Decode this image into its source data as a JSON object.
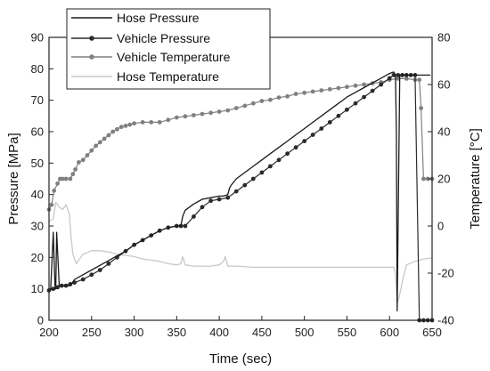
{
  "chart_data": {
    "type": "line",
    "title": "",
    "xlabel": "Time (sec)",
    "ylabel_left": "Pressure [MPa]",
    "ylabel_right": "Temperature [°C]",
    "xlim": [
      200,
      650
    ],
    "ylim_left": [
      0,
      90
    ],
    "ylim_right": [
      -40,
      80
    ],
    "x_ticks": [
      200,
      250,
      300,
      350,
      400,
      450,
      500,
      550,
      600,
      650
    ],
    "y_left_ticks": [
      0,
      10,
      20,
      30,
      40,
      50,
      60,
      70,
      80,
      90
    ],
    "y_right_ticks": [
      -40,
      -20,
      0,
      20,
      40,
      60,
      80
    ],
    "grid": false,
    "legend_position": "top-left",
    "series": [
      {
        "name": "Hose Pressure",
        "axis": "left",
        "color": "#1a1a1a",
        "marker": "none",
        "x": [
          202,
          205,
          207,
          208,
          209,
          212,
          215,
          220,
          225,
          230,
          240,
          250,
          260,
          270,
          280,
          290,
          300,
          310,
          320,
          330,
          340,
          350,
          355,
          357,
          360,
          370,
          380,
          390,
          400,
          405,
          410,
          412,
          414,
          420,
          430,
          440,
          450,
          460,
          470,
          480,
          490,
          500,
          510,
          520,
          530,
          540,
          550,
          560,
          570,
          580,
          590,
          600,
          605,
          607,
          608,
          609,
          612,
          620,
          625,
          630,
          632,
          633,
          640,
          648
        ],
        "y": [
          10,
          28,
          11,
          10,
          28,
          11,
          11,
          11,
          11,
          13,
          14.5,
          16,
          17.5,
          19,
          20.5,
          22,
          24,
          25.5,
          27,
          28.5,
          29.5,
          30,
          30,
          33,
          35,
          37,
          38.5,
          39,
          39.5,
          39.5,
          40,
          42,
          43,
          45,
          47,
          49,
          51,
          53,
          55,
          57,
          59,
          61,
          63,
          65,
          67,
          69,
          71,
          72.5,
          74,
          75.5,
          77,
          78.5,
          79,
          78,
          60,
          3,
          78,
          78,
          78,
          78,
          78,
          78,
          78,
          78
        ]
      },
      {
        "name": "Vehicle Pressure",
        "axis": "left",
        "color": "#2b2b2b",
        "marker": "dot",
        "x": [
          200,
          205,
          210,
          215,
          220,
          225,
          230,
          240,
          250,
          260,
          270,
          280,
          290,
          300,
          310,
          320,
          330,
          340,
          350,
          355,
          360,
          370,
          380,
          390,
          400,
          410,
          420,
          430,
          440,
          450,
          460,
          470,
          480,
          490,
          500,
          510,
          520,
          530,
          540,
          550,
          560,
          570,
          580,
          590,
          600,
          605,
          610,
          615,
          620,
          625,
          630,
          635,
          640,
          645,
          650
        ],
        "y": [
          9.5,
          10,
          10.5,
          11,
          11,
          11.5,
          12,
          13,
          14.5,
          16,
          18,
          20,
          22,
          24,
          25.5,
          27,
          28.5,
          29.5,
          30,
          30,
          30,
          33,
          36,
          38,
          38.5,
          39,
          41,
          43,
          45,
          47,
          49,
          51,
          53,
          55,
          57,
          59,
          61,
          63,
          65,
          67,
          69,
          71,
          73,
          75,
          77,
          78,
          78,
          78,
          78,
          78,
          78,
          0,
          0,
          0,
          0
        ]
      },
      {
        "name": "Vehicle Temperature",
        "axis": "right",
        "color": "#808080",
        "marker": "dot",
        "x": [
          200,
          203,
          206,
          210,
          213,
          216,
          220,
          225,
          228,
          231,
          235,
          240,
          245,
          250,
          255,
          260,
          265,
          270,
          275,
          280,
          285,
          290,
          295,
          300,
          310,
          320,
          330,
          340,
          350,
          360,
          370,
          380,
          390,
          400,
          410,
          420,
          430,
          440,
          450,
          460,
          470,
          480,
          490,
          500,
          510,
          520,
          530,
          540,
          550,
          560,
          570,
          580,
          590,
          600,
          610,
          620,
          630,
          635,
          637,
          640,
          645,
          650
        ],
        "y": [
          7,
          9,
          15,
          18,
          20,
          20,
          20,
          20,
          22,
          24,
          27,
          28,
          30,
          32,
          34,
          35.5,
          37,
          38.5,
          40,
          41,
          42,
          42.5,
          43,
          43.5,
          44,
          44,
          44,
          45,
          46,
          46.5,
          47,
          47.5,
          48,
          48.5,
          49,
          50,
          51,
          52,
          53,
          53.5,
          54.5,
          55,
          56,
          56.5,
          57,
          57.5,
          58,
          58.5,
          59,
          59.5,
          60,
          60.5,
          61,
          62,
          62.5,
          62.5,
          62,
          62,
          50,
          20,
          20,
          20
        ]
      },
      {
        "name": "Hose Temperature",
        "axis": "right",
        "color": "#c8c8c8",
        "marker": "none",
        "x": [
          200,
          205,
          208,
          212,
          216,
          220,
          224,
          226,
          228,
          232,
          240,
          250,
          260,
          270,
          280,
          290,
          300,
          310,
          320,
          330,
          340,
          350,
          355,
          357,
          360,
          370,
          380,
          390,
          400,
          405,
          407,
          410,
          420,
          440,
          460,
          480,
          500,
          520,
          540,
          560,
          580,
          600,
          605,
          607,
          609,
          612,
          616,
          620,
          630,
          640,
          650
        ],
        "y": [
          2,
          3,
          10,
          8,
          7,
          9,
          5,
          -5,
          -12,
          -16,
          -12,
          -10.5,
          -10.5,
          -11,
          -12,
          -12.5,
          -13,
          -14,
          -14.5,
          -15,
          -16,
          -16.5,
          -16,
          -13,
          -16.5,
          -17,
          -17,
          -17,
          -16.5,
          -15,
          -13,
          -17,
          -17,
          -17.5,
          -17.5,
          -17.5,
          -17.5,
          -17.5,
          -17.5,
          -17.5,
          -17.5,
          -17.5,
          -17.5,
          -20,
          -33,
          -29,
          -22,
          -16.5,
          -15,
          -14,
          -13.5
        ]
      }
    ]
  }
}
